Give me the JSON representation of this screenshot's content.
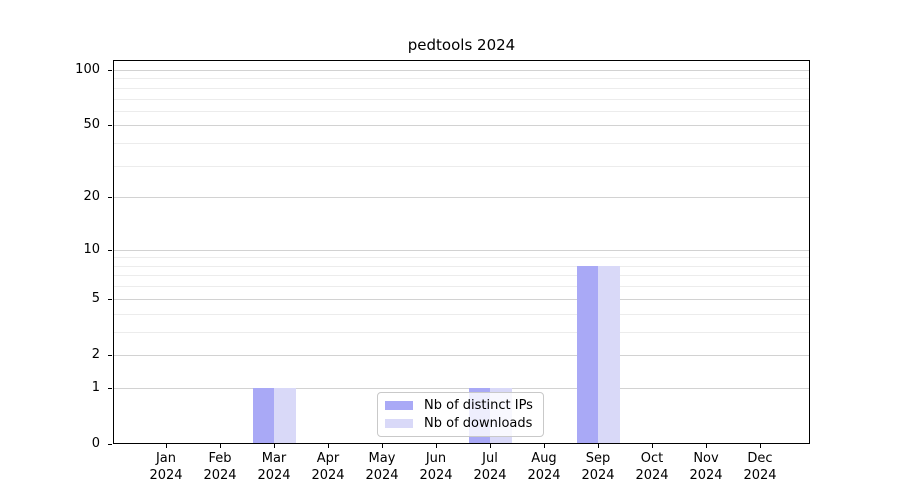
{
  "title": "pedtools 2024",
  "chart_data": {
    "type": "bar",
    "title": "pedtools 2024",
    "x": {
      "months": [
        "Jan",
        "Feb",
        "Mar",
        "Apr",
        "May",
        "Jun",
        "Jul",
        "Aug",
        "Sep",
        "Oct",
        "Nov",
        "Dec"
      ],
      "year": "2024"
    },
    "series": [
      {
        "name": "Nb of distinct IPs",
        "color": "#a9a9f6",
        "values": [
          0,
          0,
          1,
          0,
          0,
          0,
          1,
          0,
          8,
          0,
          0,
          0
        ]
      },
      {
        "name": "Nb of downloads",
        "color": "#d9d9f8",
        "values": [
          0,
          0,
          1,
          0,
          0,
          0,
          1,
          0,
          8,
          0,
          0,
          0
        ]
      }
    ],
    "y_axis": {
      "scale": "log1p",
      "major_ticks": [
        0,
        1,
        2,
        5,
        10,
        20,
        50,
        100
      ],
      "minor_ticks": [
        3,
        4,
        6,
        7,
        8,
        9,
        30,
        40,
        60,
        70,
        80,
        90
      ],
      "ylim": [
        0,
        113
      ]
    },
    "legend": {
      "position": "lower center",
      "items": [
        "Nb of distinct IPs",
        "Nb of downloads"
      ]
    },
    "grid": true,
    "colors": {
      "major_grid": "#d2d2d2",
      "minor_grid": "#ececec",
      "spine": "#000000",
      "background": "#ffffff"
    }
  }
}
